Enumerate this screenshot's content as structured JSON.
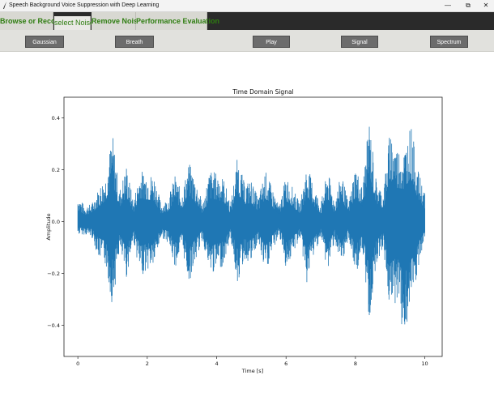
{
  "window": {
    "title": "Speech Background Voice Suppression with Deep Learning",
    "minimize_glyph": "—",
    "restore_glyph": "⧉",
    "close_glyph": "✕"
  },
  "tabs": [
    {
      "label": "Browse or Record"
    },
    {
      "label": "select Noise",
      "active": true
    },
    {
      "label": "Remove Noise"
    },
    {
      "label": "Performance Evaluation"
    }
  ],
  "toolbar": {
    "gaussian_label": "Gaussian",
    "breath_label": "Breath",
    "play_label": "Play",
    "signal_label": "Signal",
    "spectrum_label": "Spectrum"
  },
  "chart_data": {
    "type": "line",
    "title": "Time Domain Signal",
    "xlabel": "Time [s]",
    "ylabel": "Amplitude",
    "xlim": [
      -0.4,
      10.5
    ],
    "ylim": [
      -0.52,
      0.48
    ],
    "xticks": [
      0,
      2,
      4,
      6,
      8,
      10
    ],
    "yticks": [
      -0.4,
      -0.2,
      0.0,
      0.2,
      0.4
    ],
    "xtick_labels": [
      "0",
      "2",
      "4",
      "6",
      "8",
      "10"
    ],
    "ytick_labels": [
      "−0.4",
      "−0.2",
      "0.0",
      "0.2",
      "0.4"
    ],
    "series_color": "#1f77b4",
    "envelope": {
      "t": [
        0.0,
        0.2,
        0.4,
        0.6,
        0.8,
        1.0,
        1.2,
        1.4,
        1.6,
        1.8,
        2.0,
        2.2,
        2.4,
        2.6,
        2.8,
        3.0,
        3.2,
        3.4,
        3.6,
        3.8,
        4.0,
        4.2,
        4.4,
        4.6,
        4.8,
        5.0,
        5.2,
        5.4,
        5.6,
        5.8,
        6.0,
        6.2,
        6.4,
        6.6,
        6.8,
        7.0,
        7.2,
        7.4,
        7.6,
        7.8,
        8.0,
        8.2,
        8.4,
        8.6,
        8.8,
        9.0,
        9.2,
        9.4,
        9.6,
        9.8,
        10.0
      ],
      "upper": [
        0.1,
        0.06,
        0.07,
        0.13,
        0.18,
        0.34,
        0.12,
        0.22,
        0.08,
        0.2,
        0.19,
        0.18,
        0.07,
        0.09,
        0.18,
        0.11,
        0.23,
        0.16,
        0.07,
        0.2,
        0.19,
        0.17,
        0.07,
        0.25,
        0.15,
        0.16,
        0.09,
        0.2,
        0.13,
        0.06,
        0.18,
        0.13,
        0.07,
        0.22,
        0.14,
        0.07,
        0.2,
        0.08,
        0.19,
        0.07,
        0.22,
        0.13,
        0.4,
        0.16,
        0.11,
        0.36,
        0.29,
        0.28,
        0.38,
        0.2,
        0.11
      ],
      "lower": [
        -0.05,
        -0.05,
        -0.06,
        -0.14,
        -0.17,
        -0.33,
        -0.11,
        -0.22,
        -0.07,
        -0.21,
        -0.19,
        -0.17,
        -0.06,
        -0.08,
        -0.18,
        -0.1,
        -0.24,
        -0.15,
        -0.07,
        -0.21,
        -0.19,
        -0.17,
        -0.06,
        -0.24,
        -0.15,
        -0.16,
        -0.08,
        -0.21,
        -0.12,
        -0.05,
        -0.18,
        -0.13,
        -0.06,
        -0.24,
        -0.13,
        -0.06,
        -0.2,
        -0.07,
        -0.2,
        -0.06,
        -0.21,
        -0.12,
        -0.39,
        -0.16,
        -0.1,
        -0.36,
        -0.3,
        -0.46,
        -0.34,
        -0.2,
        -0.07
      ]
    }
  }
}
